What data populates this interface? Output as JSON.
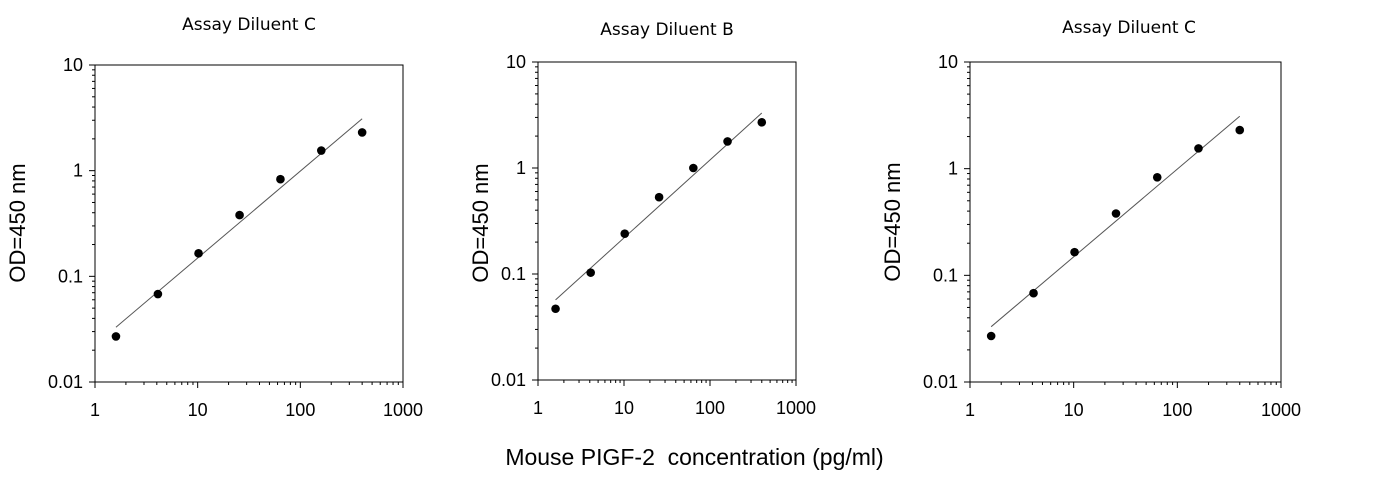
{
  "common_xlabel": "Mouse PIGF-2  concentration (pg/ml)",
  "chart_data": [
    {
      "type": "scatter",
      "title": "Assay Diluent C",
      "xlabel": "Mouse PIGF-2  concentration (pg/ml)",
      "ylabel": "OD=450 nm",
      "xscale": "log",
      "yscale": "log",
      "xlim": [
        1,
        1000
      ],
      "ylim": [
        0.01,
        10
      ],
      "xticks": [
        "1",
        "10",
        "100",
        "1000"
      ],
      "yticks": [
        "0.01",
        "0.1",
        "1",
        "10"
      ],
      "grid": false,
      "legend": "none",
      "series": [
        {
          "x": [
            1.6,
            4.1,
            10.2,
            25.6,
            64,
            160,
            400
          ],
          "y": [
            0.027,
            0.068,
            0.165,
            0.38,
            0.83,
            1.55,
            2.3
          ]
        }
      ],
      "trendline": {
        "x": [
          1.6,
          400
        ],
        "y": [
          0.033,
          3.1
        ]
      },
      "marker_color": "#000000"
    },
    {
      "type": "scatter",
      "title": "Assay Diluent B",
      "xlabel": "Mouse PIGF-2  concentration (pg/ml)",
      "ylabel": "OD=450 nm",
      "xscale": "log",
      "yscale": "log",
      "xlim": [
        1,
        1000
      ],
      "ylim": [
        0.01,
        10
      ],
      "xticks": [
        "1",
        "10",
        "100",
        "1000"
      ],
      "yticks": [
        "0.01",
        "0.1",
        "1",
        "10"
      ],
      "grid": false,
      "legend": "none",
      "series": [
        {
          "x": [
            1.6,
            4.1,
            10.2,
            25.6,
            64,
            160,
            400
          ],
          "y": [
            0.047,
            0.103,
            0.24,
            0.53,
            1.0,
            1.78,
            2.7
          ]
        }
      ],
      "trendline": {
        "x": [
          1.6,
          400
        ],
        "y": [
          0.057,
          3.3
        ]
      },
      "marker_color": "#000000"
    },
    {
      "type": "scatter",
      "title": "Assay Diluent C",
      "xlabel": "Mouse PIGF-2  concentration (pg/ml)",
      "ylabel": "OD=450 nm",
      "xscale": "log",
      "yscale": "log",
      "xlim": [
        1,
        1000
      ],
      "ylim": [
        0.01,
        10
      ],
      "xticks": [
        "1",
        "10",
        "100",
        "1000"
      ],
      "yticks": [
        "0.01",
        "0.1",
        "1",
        "10"
      ],
      "grid": false,
      "legend": "none",
      "series": [
        {
          "x": [
            1.6,
            4.1,
            10.2,
            25.6,
            64,
            160,
            400
          ],
          "y": [
            0.027,
            0.068,
            0.165,
            0.38,
            0.83,
            1.55,
            2.3
          ]
        }
      ],
      "trendline": {
        "x": [
          1.6,
          400
        ],
        "y": [
          0.033,
          3.1
        ]
      },
      "marker_color": "#000000"
    }
  ]
}
